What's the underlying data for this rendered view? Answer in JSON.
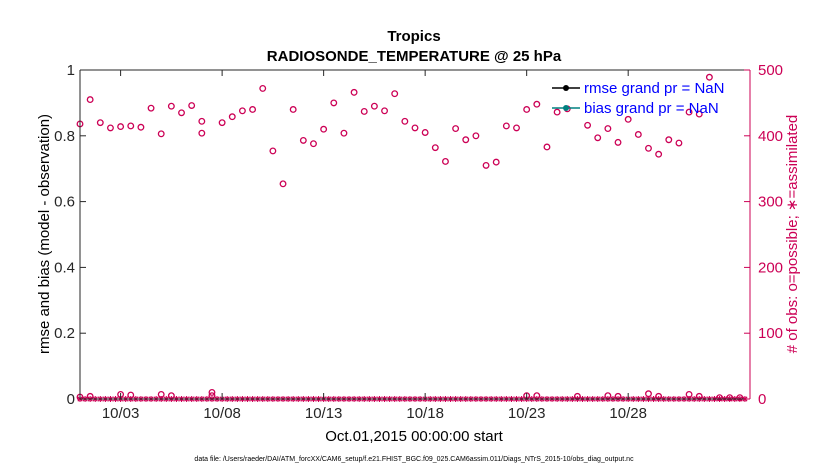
{
  "chart_data": {
    "type": "scatter",
    "title": "Tropics",
    "subtitle": "RADIOSONDE_TEMPERATURE @ 25 hPa",
    "xlabel": "Oct.01,2015 00:00:00 start",
    "ylabel_left": "rmse and bias (model - observation)",
    "ylabel_right": "# of obs: o=possible; ∗=assimilated",
    "xlim": [
      1,
      34
    ],
    "ylim_left": [
      0,
      1
    ],
    "ylim_right": [
      0,
      500
    ],
    "x_ticks": [
      3,
      8,
      13,
      18,
      23,
      28
    ],
    "x_tick_labels": [
      "10/03",
      "10/08",
      "10/13",
      "10/18",
      "10/23",
      "10/28"
    ],
    "y_left_ticks": [
      0,
      0.2,
      0.4,
      0.6,
      0.8,
      1
    ],
    "y_left_tick_labels": [
      "0",
      "0.2",
      "0.4",
      "0.6",
      "0.8",
      "1"
    ],
    "y_right_ticks": [
      0,
      100,
      200,
      300,
      400,
      500
    ],
    "y_right_tick_labels": [
      "0",
      "100",
      "200",
      "300",
      "400",
      "500"
    ],
    "legend": [
      {
        "label": "rmse grand pr = NaN",
        "color": "#000000",
        "marker": "dot"
      },
      {
        "label": "bias grand pr = NaN",
        "color": "#008080",
        "marker": "dot"
      }
    ],
    "series": [
      {
        "name": "possible",
        "axis": "right",
        "marker": "o",
        "color": "#cc0055",
        "x": [
          1,
          1.5,
          1,
          1.5,
          2,
          2.5,
          3,
          3.5,
          3,
          3.5,
          4,
          4.5,
          5,
          5.5,
          5,
          5.5,
          6,
          6.5,
          7,
          7.5,
          7,
          7.5,
          8,
          8.5,
          9,
          9.5,
          10,
          10.5,
          11,
          11.5,
          12,
          12.5,
          13,
          13.5,
          14,
          14.5,
          15,
          15.5,
          16,
          16.5,
          17,
          17.5,
          18,
          18.5,
          19,
          19.5,
          20,
          20.5,
          21,
          21.5,
          22,
          22.5,
          23,
          23.5,
          23,
          23.5,
          24,
          24.5,
          25,
          25.5,
          26,
          26.5,
          27,
          27.5,
          27,
          27.5,
          28,
          28.5,
          29,
          29.5,
          29,
          29.5,
          30,
          30.5,
          31,
          31.5,
          31,
          31.5,
          32,
          32.5,
          33,
          33.5
        ],
        "y": [
          418,
          455,
          3,
          4,
          420,
          412,
          414,
          415,
          7,
          6,
          413,
          442,
          403,
          445,
          7,
          5,
          435,
          446,
          404,
          5,
          422,
          10,
          420,
          429,
          438,
          440,
          472,
          377,
          327,
          440,
          393,
          388,
          410,
          450,
          404,
          466,
          437,
          445,
          438,
          464,
          422,
          412,
          405,
          382,
          361,
          411,
          394,
          400,
          355,
          360,
          415,
          412,
          5,
          5,
          440,
          448,
          383,
          436,
          441,
          4,
          416,
          397,
          411,
          390,
          5,
          4,
          425,
          402,
          381,
          372,
          8,
          4,
          394,
          389,
          436,
          433,
          7,
          4,
          489,
          2,
          2,
          2
        ]
      },
      {
        "name": "assimilated",
        "axis": "right",
        "marker": "*",
        "color": "#cc0055",
        "x": [
          1,
          1.25,
          1.5,
          1.75,
          2,
          2.25,
          2.5,
          2.75,
          3,
          3.25,
          3.5,
          3.75,
          4,
          4.25,
          4.5,
          4.75,
          5,
          5.25,
          5.5,
          5.75,
          6,
          6.25,
          6.5,
          6.75,
          7,
          7.25,
          7.5,
          7.75,
          8,
          8.25,
          8.5,
          8.75,
          9,
          9.25,
          9.5,
          9.75,
          10,
          10.25,
          10.5,
          10.75,
          11,
          11.25,
          11.5,
          11.75,
          12,
          12.25,
          12.5,
          12.75,
          13,
          13.25,
          13.5,
          13.75,
          14,
          14.25,
          14.5,
          14.75,
          15,
          15.25,
          15.5,
          15.75,
          16,
          16.25,
          16.5,
          16.75,
          17,
          17.25,
          17.5,
          17.75,
          18,
          18.25,
          18.5,
          18.75,
          19,
          19.25,
          19.5,
          19.75,
          20,
          20.25,
          20.5,
          20.75,
          21,
          21.25,
          21.5,
          21.75,
          22,
          22.25,
          22.5,
          22.75,
          23,
          23.25,
          23.5,
          23.75,
          24,
          24.25,
          24.5,
          24.75,
          25,
          25.25,
          25.5,
          25.75,
          26,
          26.25,
          26.5,
          26.75,
          27,
          27.25,
          27.5,
          27.75,
          28,
          28.25,
          28.5,
          28.75,
          29,
          29.25,
          29.5,
          29.75,
          30,
          30.25,
          30.5,
          30.75,
          31,
          31.25,
          31.5,
          31.75,
          32,
          32.25,
          32.5,
          32.75,
          33,
          33.25,
          33.5,
          33.75
        ],
        "y": [
          0,
          0,
          0,
          0,
          0,
          0,
          0,
          0,
          0,
          0,
          0,
          0,
          0,
          0,
          0,
          0,
          0,
          0,
          0,
          0,
          0,
          0,
          0,
          0,
          0,
          0,
          0,
          0,
          0,
          0,
          0,
          0,
          0,
          0,
          0,
          0,
          0,
          0,
          0,
          0,
          0,
          0,
          0,
          0,
          0,
          0,
          0,
          0,
          0,
          0,
          0,
          0,
          0,
          0,
          0,
          0,
          0,
          0,
          0,
          0,
          0,
          0,
          0,
          0,
          0,
          0,
          0,
          0,
          0,
          0,
          0,
          0,
          0,
          0,
          0,
          0,
          0,
          0,
          0,
          0,
          0,
          0,
          0,
          0,
          0,
          0,
          0,
          0,
          0,
          0,
          0,
          0,
          0,
          0,
          0,
          0,
          0,
          0,
          0,
          0,
          0,
          0,
          0,
          0,
          0,
          0,
          0,
          0,
          0,
          0,
          0,
          0,
          0,
          0,
          0,
          0,
          0,
          0,
          0,
          0,
          0,
          0,
          0,
          0,
          0,
          0,
          0,
          0,
          0,
          0,
          0,
          0
        ]
      },
      {
        "name": "rmse",
        "axis": "left",
        "color": "#000000",
        "x": [],
        "y": []
      },
      {
        "name": "bias",
        "axis": "left",
        "color": "#008080",
        "x": [],
        "y": []
      }
    ]
  },
  "footnote": "data file: /Users/raeder/DAI/ATM_forcXX/CAM6_setup/f.e21.FHIST_BGC.f09_025.CAM6assim.011/Diags_NTrS_2015-10/obs_diag_output.nc",
  "colors": {
    "accent": "#cc0055",
    "legend_text": "#0000ff",
    "bias_line": "#008080"
  }
}
